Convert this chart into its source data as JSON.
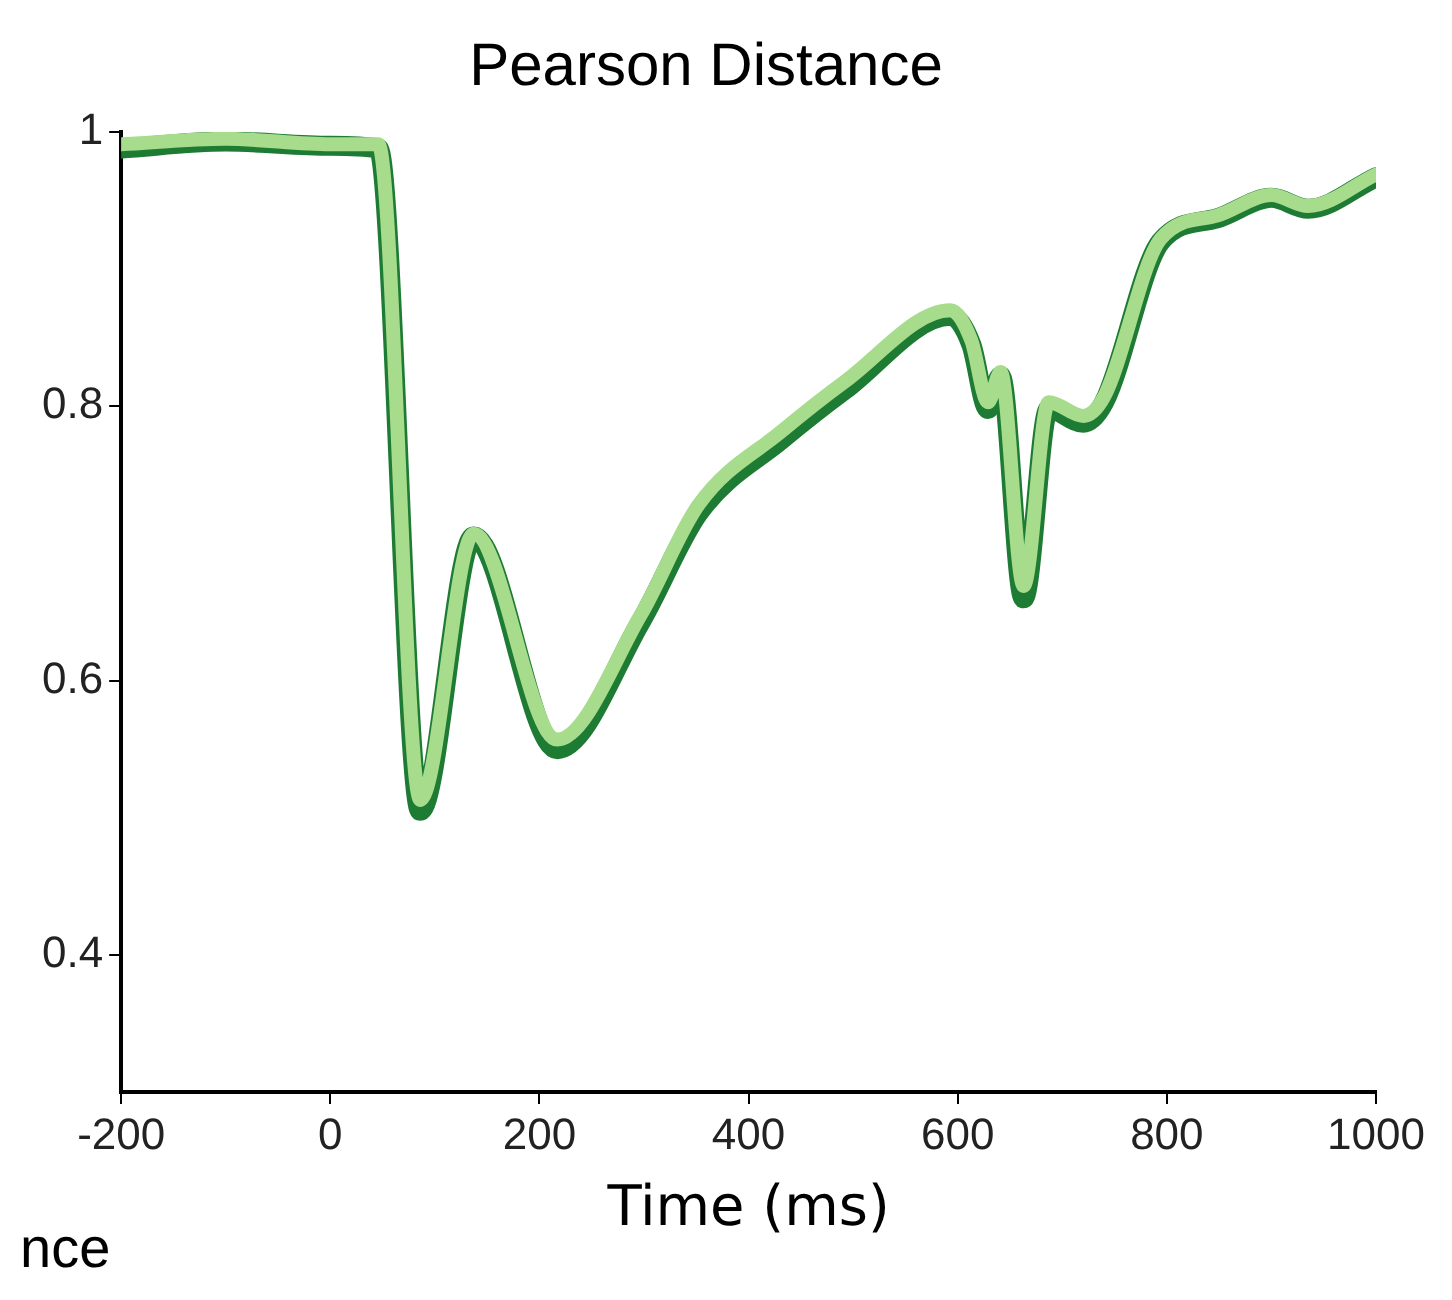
{
  "chart_data": {
    "type": "line",
    "title": "Pearson Distance",
    "xlabel": "Time (ms)",
    "annotations": [
      "nce"
    ],
    "xlim": [
      -200,
      1000
    ],
    "xticks": [
      -200,
      0,
      200,
      400,
      600,
      800,
      1000
    ],
    "ylim": [
      0.3,
      1
    ],
    "yticks": [
      0.4,
      0.6,
      0.8,
      1
    ],
    "grid": false,
    "series": [
      {
        "color": "#1e7b34",
        "x": [
          -200,
          -100,
          0,
          46,
          86,
          137,
          217,
          297,
          352,
          432,
          492,
          593,
          613,
          629,
          641,
          663,
          687,
          720,
          740,
          794,
          848,
          900,
          935,
          1000
        ],
        "values": [
          0.988,
          0.993,
          0.99,
          0.988,
          0.505,
          0.705,
          0.55,
          0.643,
          0.722,
          0.776,
          0.812,
          0.866,
          0.845,
          0.798,
          0.822,
          0.66,
          0.798,
          0.788,
          0.803,
          0.92,
          0.937,
          0.952,
          0.944,
          0.967
        ]
      },
      {
        "color": "#a6dc8c",
        "x": [
          -200,
          -100,
          0,
          46,
          86,
          137,
          217,
          297,
          352,
          432,
          492,
          593,
          613,
          629,
          641,
          663,
          687,
          720,
          740,
          794,
          848,
          900,
          935,
          1000
        ],
        "values": [
          0.991,
          0.995,
          0.991,
          0.991,
          0.513,
          0.707,
          0.557,
          0.648,
          0.728,
          0.782,
          0.818,
          0.87,
          0.848,
          0.803,
          0.825,
          0.669,
          0.803,
          0.793,
          0.807,
          0.922,
          0.939,
          0.954,
          0.946,
          0.969
        ]
      }
    ]
  }
}
